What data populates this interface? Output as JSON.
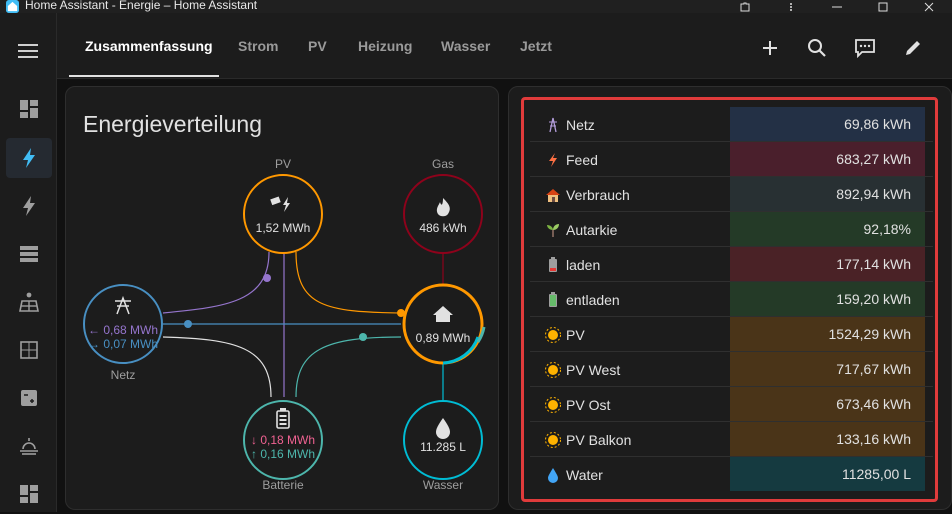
{
  "window": {
    "title": "Home Assistant - Energie – Home Assistant"
  },
  "tabs": [
    {
      "label": "Zusammenfassung",
      "active": true
    },
    {
      "label": "Strom"
    },
    {
      "label": "PV"
    },
    {
      "label": "Heizung"
    },
    {
      "label": "Wasser"
    },
    {
      "label": "Jetzt"
    }
  ],
  "header_icons": [
    "plus-icon",
    "search-icon",
    "comment-icon",
    "pencil-icon"
  ],
  "sidebar_icons": [
    "dashboard-icon",
    "energy-icon",
    "flash-icon",
    "server-icon",
    "solar-panel-icon",
    "spreadsheet-icon",
    "calculator-icon",
    "sunset-icon",
    "grid-icon"
  ],
  "energy_card": {
    "title": "Energieverteilung",
    "nodes": {
      "pv": {
        "label": "PV",
        "value": "1,52 MWh",
        "color": "#ff9800"
      },
      "gas": {
        "label": "Gas",
        "value": "486 kWh",
        "color": "#8e021b"
      },
      "grid": {
        "label": "Netz",
        "value_in": "0,68 MWh",
        "value_out": "0,07 MWh",
        "color": "#488fc2"
      },
      "home": {
        "value": "0,89 MWh"
      },
      "battery": {
        "label": "Batterie",
        "value_in": "0,18 MWh",
        "value_out": "0,16 MWh",
        "color": "#f06292"
      },
      "water": {
        "label": "Wasser",
        "value": "11.285 L",
        "color": "#00bcd4"
      }
    }
  },
  "stats_table": {
    "rows": [
      {
        "icon": "pylon-emoji",
        "label": "Netz",
        "value": "69,86 kWh",
        "bg": "#233045"
      },
      {
        "icon": "lightning-emoji",
        "label": "Feed",
        "value": "683,27 kWh",
        "bg": "#4a1f2c"
      },
      {
        "icon": "house-emoji",
        "label": "Verbrauch",
        "value": "892,94 kWh",
        "bg": "#283033"
      },
      {
        "icon": "seedling-emoji",
        "label": "Autarkie",
        "value": "92,18%",
        "bg": "#243a27"
      },
      {
        "icon": "battery-low-emoji",
        "label": "laden",
        "value": "177,14 kWh",
        "bg": "#4a2226"
      },
      {
        "icon": "battery-full-emoji",
        "label": "entladen",
        "value": "159,20 kWh",
        "bg": "#243a27"
      },
      {
        "icon": "sun-emoji",
        "label": "PV",
        "value": "1524,29 kWh",
        "bg": "#4a3418"
      },
      {
        "icon": "sun-emoji",
        "label": "PV West",
        "value": "717,67 kWh",
        "bg": "#4a3418"
      },
      {
        "icon": "sun-emoji",
        "label": "PV Ost",
        "value": "673,46 kWh",
        "bg": "#4a3418"
      },
      {
        "icon": "sun-emoji",
        "label": "PV Balkon",
        "value": "133,16 kWh",
        "bg": "#4a3418"
      },
      {
        "icon": "droplet-emoji",
        "label": "Water",
        "value": "11285,00 L",
        "bg": "#153a40"
      }
    ]
  }
}
